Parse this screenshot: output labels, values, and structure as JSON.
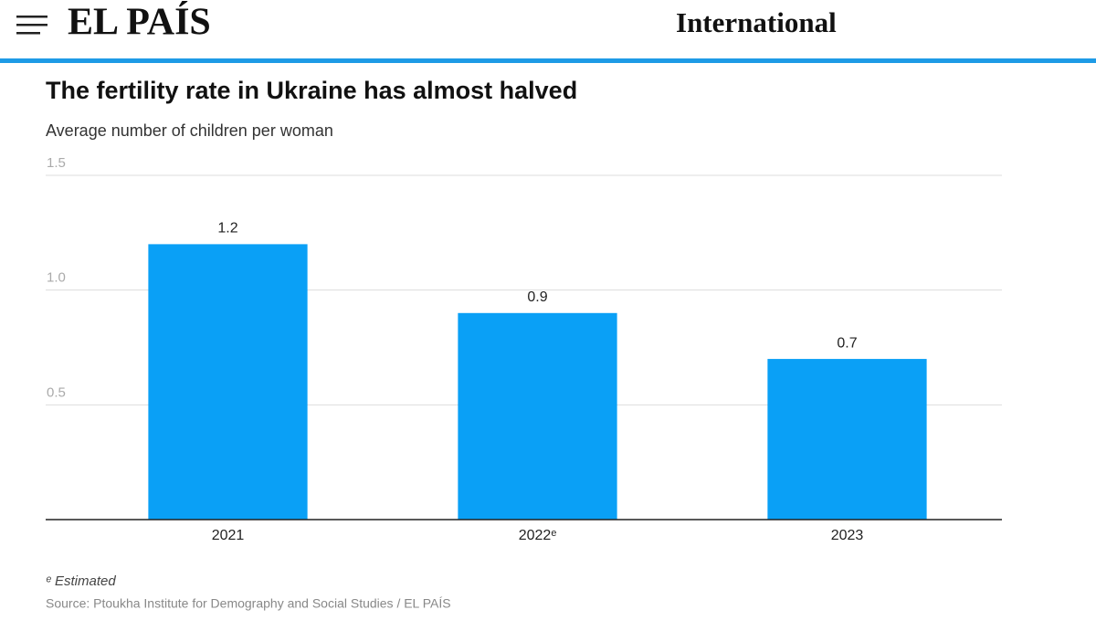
{
  "header": {
    "logo": "EL PAÍS",
    "section": "International"
  },
  "chart_data": {
    "type": "bar",
    "title": "The fertility rate in Ukraine has almost halved",
    "subtitle": "Average number of children per woman",
    "categories": [
      "2021",
      "2022ᵉ",
      "2023"
    ],
    "values": [
      1.2,
      0.9,
      0.7
    ],
    "color": "#0aa0f6",
    "ylim": [
      0,
      1.5
    ],
    "yticks": [
      0.5,
      {
        "value": 1,
        "label": "1.0"
      },
      1.5
    ],
    "grid": true,
    "footnote": {
      "marker": "ᵉ",
      "text": "Estimated"
    },
    "source": "Source: Ptoukha Institute for Demography and Social Studies / EL PAÍS"
  }
}
